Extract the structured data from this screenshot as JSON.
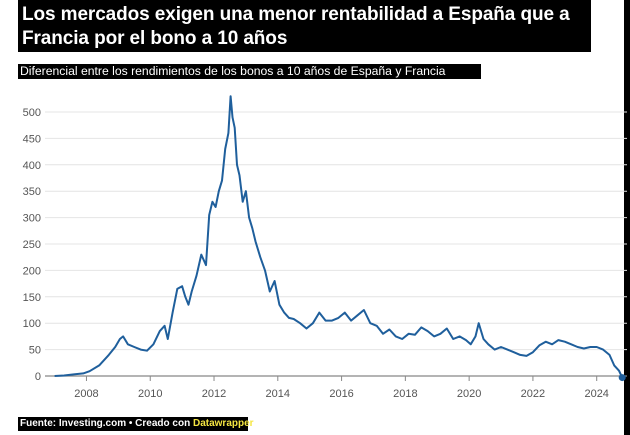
{
  "header": {
    "title": "Los mercados exigen una menor rentabilidad a España que a Francia por el bono a 10 años",
    "subtitle": "Diferencial entre los rendimientos de los bonos a 10 años de España y Francia"
  },
  "footer": {
    "source": "Fuente: Investing.com • Creado con ",
    "tool": "Datawrapper"
  },
  "colors": {
    "line": "#1f5f9c",
    "grid": "#e4e4e4",
    "endpoint": "#1f5f9c"
  },
  "chart_data": {
    "type": "line",
    "title": "Los mercados exigen una menor rentabilidad a España que a Francia por el bono a 10 años",
    "subtitle": "Diferencial entre los rendimientos de los bonos a 10 años de España y Francia",
    "xlabel": "",
    "ylabel": "",
    "xlim": [
      2006.7,
      2024.95
    ],
    "ylim": [
      -8,
      540
    ],
    "grid": true,
    "y_ticks": [
      0,
      50,
      100,
      150,
      200,
      250,
      300,
      350,
      400,
      450,
      500
    ],
    "x_ticks": [
      2008,
      2010,
      2012,
      2014,
      2016,
      2018,
      2020,
      2022,
      2024
    ],
    "series": [
      {
        "x": [
          2007.0,
          2007.3,
          2007.6,
          2007.9,
          2008.1,
          2008.4,
          2008.7,
          2008.9,
          2009.05,
          2009.15,
          2009.3,
          2009.5,
          2009.7,
          2009.9,
          2010.1,
          2010.3,
          2010.45,
          2010.55,
          2010.7,
          2010.85,
          2011.0,
          2011.1,
          2011.2,
          2011.3,
          2011.45,
          2011.6,
          2011.75,
          2011.85,
          2011.95,
          2012.05,
          2012.15,
          2012.25,
          2012.35,
          2012.45,
          2012.52,
          2012.58,
          2012.65,
          2012.72,
          2012.8,
          2012.9,
          2013.0,
          2013.1,
          2013.2,
          2013.3,
          2013.45,
          2013.6,
          2013.75,
          2013.9,
          2014.05,
          2014.2,
          2014.35,
          2014.5,
          2014.7,
          2014.9,
          2015.1,
          2015.3,
          2015.5,
          2015.7,
          2015.9,
          2016.1,
          2016.3,
          2016.5,
          2016.7,
          2016.9,
          2017.1,
          2017.3,
          2017.5,
          2017.7,
          2017.9,
          2018.1,
          2018.3,
          2018.5,
          2018.7,
          2018.9,
          2019.1,
          2019.3,
          2019.5,
          2019.7,
          2019.9,
          2020.05,
          2020.2,
          2020.3,
          2020.45,
          2020.6,
          2020.8,
          2021.0,
          2021.2,
          2021.4,
          2021.6,
          2021.8,
          2022.0,
          2022.2,
          2022.4,
          2022.6,
          2022.8,
          2023.0,
          2023.2,
          2023.4,
          2023.6,
          2023.8,
          2024.0,
          2024.2,
          2024.4,
          2024.55,
          2024.7,
          2024.8
        ],
        "values": [
          0,
          1,
          3,
          5,
          9,
          20,
          40,
          55,
          70,
          75,
          60,
          55,
          50,
          48,
          60,
          85,
          95,
          70,
          120,
          165,
          170,
          150,
          135,
          160,
          190,
          230,
          210,
          305,
          330,
          320,
          350,
          370,
          430,
          460,
          530,
          490,
          470,
          400,
          380,
          330,
          350,
          300,
          280,
          255,
          225,
          200,
          160,
          180,
          135,
          120,
          110,
          108,
          100,
          90,
          100,
          120,
          105,
          105,
          110,
          120,
          105,
          115,
          125,
          100,
          95,
          80,
          88,
          75,
          70,
          80,
          78,
          92,
          85,
          75,
          80,
          90,
          70,
          75,
          68,
          60,
          75,
          100,
          70,
          60,
          50,
          55,
          50,
          45,
          40,
          38,
          45,
          58,
          65,
          60,
          68,
          65,
          60,
          55,
          52,
          55,
          55,
          50,
          40,
          20,
          10,
          -3
        ]
      }
    ]
  }
}
